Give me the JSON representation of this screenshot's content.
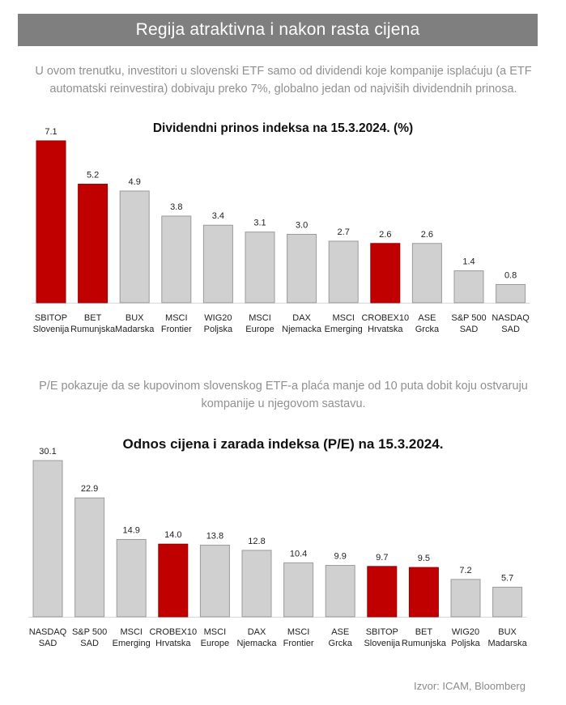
{
  "banner": {
    "title": "Regija atraktivna i nakon rasta cijena"
  },
  "intro_text": "U ovom trenutku, investitori u slovenski ETF samo od dividendi koje kompanije isplaćuju (a ETF automatski reinvestira) dobivaju preko 7%, globalno jedan od najviših dividendnih prinosa.",
  "pe_text": "P/E pokazuje da se kupovinom slovenskog ETF-a plaća manje od 10 puta dobit koju ostvaruju kompanije u njegovom sastavu.",
  "source": "Izvor: ICAM, Bloomberg",
  "colors": {
    "highlight": "#c00000",
    "default": "#d0d0d0",
    "banner": "#7f7f7f"
  },
  "chart_data": [
    {
      "type": "bar",
      "title": "Dividendni prinos indeksa na 15.3.2024. (%)",
      "categories": [
        [
          "SBITOP",
          "Slovenija"
        ],
        [
          "BET",
          "Rumunjska"
        ],
        [
          "BUX",
          "Madarska"
        ],
        [
          "MSCI",
          "Frontier"
        ],
        [
          "WIG20",
          "Poljska"
        ],
        [
          "MSCI",
          "Europe"
        ],
        [
          "DAX",
          "Njemacka"
        ],
        [
          "MSCI",
          "Emerging"
        ],
        [
          "CROBEX10",
          "Hrvatska"
        ],
        [
          "ASE",
          "Grcka"
        ],
        [
          "S&P 500",
          "SAD"
        ],
        [
          "NASDAQ",
          "SAD"
        ]
      ],
      "values": [
        7.1,
        5.2,
        4.9,
        3.8,
        3.4,
        3.1,
        3.0,
        2.7,
        2.6,
        2.6,
        1.4,
        0.8
      ],
      "labels": [
        "7.1",
        "5.2",
        "4.9",
        "3.8",
        "3.4",
        "3.1",
        "3.0",
        "2.7",
        "2.6",
        "2.6",
        "1.4",
        "0.8"
      ],
      "highlighted": [
        true,
        true,
        false,
        false,
        false,
        false,
        false,
        false,
        true,
        false,
        false,
        false
      ],
      "ylim": [
        0,
        7.1
      ],
      "grid": false
    },
    {
      "type": "bar",
      "title": "Odnos cijena i zarada indeksa (P/E) na 15.3.2024.",
      "categories": [
        [
          "NASDAQ",
          "SAD"
        ],
        [
          "S&P 500",
          "SAD"
        ],
        [
          "MSCI",
          "Emerging"
        ],
        [
          "CROBEX10",
          "Hrvatska"
        ],
        [
          "MSCI",
          "Europe"
        ],
        [
          "DAX",
          "Njemacka"
        ],
        [
          "MSCI",
          "Frontier"
        ],
        [
          "ASE",
          "Grcka"
        ],
        [
          "SBITOP",
          "Slovenija"
        ],
        [
          "BET",
          "Rumunjska"
        ],
        [
          "WIG20",
          "Poljska"
        ],
        [
          "BUX",
          "Madarska"
        ]
      ],
      "values": [
        30.1,
        22.9,
        14.9,
        14.0,
        13.8,
        12.8,
        10.4,
        9.9,
        9.7,
        9.5,
        7.2,
        5.7
      ],
      "labels": [
        "30.1",
        "22.9",
        "14.9",
        "14.0",
        "13.8",
        "12.8",
        "10.4",
        "9.9",
        "9.7",
        "9.5",
        "7.2",
        "5.7"
      ],
      "highlighted": [
        false,
        false,
        false,
        true,
        false,
        false,
        false,
        false,
        true,
        true,
        false,
        false
      ],
      "ylim": [
        0,
        30.1
      ],
      "grid": false
    }
  ]
}
